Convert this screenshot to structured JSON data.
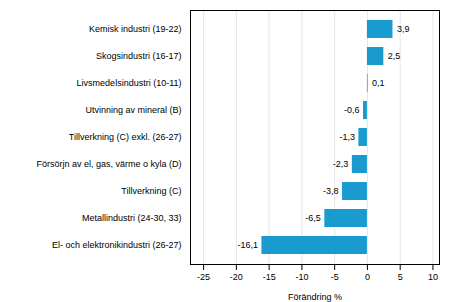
{
  "chart_data": {
    "type": "bar",
    "orientation": "horizontal",
    "categories": [
      "El- och elektronikindustri (26-27)",
      "Metallindustri (24-30, 33)",
      "Tillverkning (C)",
      "Försörjn av el, gas, värme o kyla (D)",
      "Tillverkning (C) exkl. (26-27)",
      "Utvinning av mineral (B)",
      "Livsmedelsindustri (10-11)",
      "Skogsindustri (16-17)",
      "Kemisk industri (19-22)"
    ],
    "values": [
      -16.1,
      -6.5,
      -3.8,
      -2.3,
      -1.3,
      -0.6,
      0.1,
      2.5,
      3.9
    ],
    "value_labels": [
      "-16,1",
      "-6,5",
      "-3,8",
      "-2,3",
      "-1,3",
      "-0,6",
      "0,1",
      "2,5",
      "3,9"
    ],
    "data_labels": true,
    "color": "#1a9bcf",
    "xlabel": "Förändring %",
    "xlim": [
      -27,
      11
    ],
    "xticks": [
      -25,
      -20,
      -15,
      -10,
      -5,
      0,
      5,
      10
    ],
    "grid": true
  }
}
